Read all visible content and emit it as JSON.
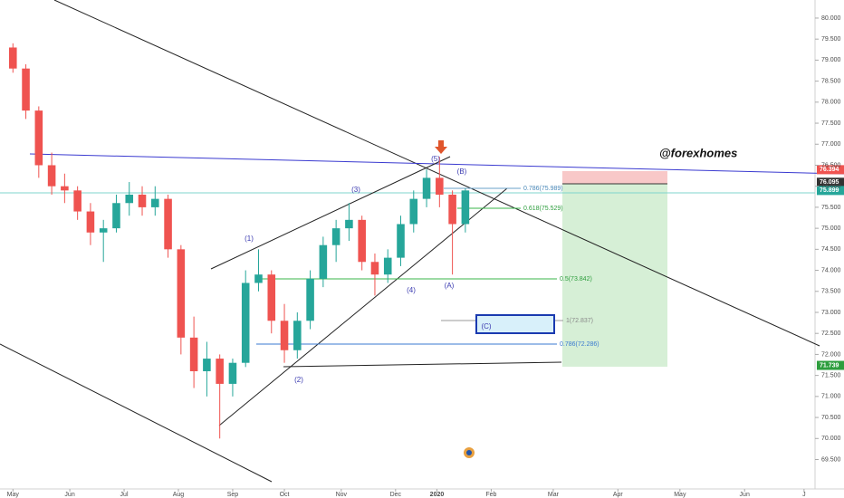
{
  "chart_data": {
    "type": "candlestick",
    "x": [
      0,
      5,
      10,
      15,
      20,
      25,
      30,
      35,
      40,
      45,
      50,
      55,
      60,
      65,
      70,
      75,
      80,
      85,
      90,
      95,
      100,
      105,
      110,
      115,
      120,
      125,
      130,
      135,
      140,
      145,
      150,
      155,
      160,
      165,
      170,
      175
    ],
    "open": [
      79.3,
      78.8,
      77.8,
      76.5,
      76.0,
      75.9,
      75.4,
      74.9,
      75.0,
      75.6,
      75.8,
      75.5,
      75.7,
      74.5,
      72.4,
      71.6,
      71.9,
      71.3,
      71.8,
      73.7,
      73.9,
      72.8,
      72.1,
      72.8,
      73.8,
      74.6,
      75.0,
      75.2,
      74.2,
      73.9,
      74.3,
      75.1,
      75.7,
      76.2,
      75.8,
      75.1
    ],
    "high": [
      79.4,
      78.9,
      77.9,
      76.8,
      76.3,
      76.0,
      75.6,
      75.2,
      75.8,
      76.1,
      76.0,
      76.0,
      75.8,
      74.6,
      72.9,
      72.3,
      72.0,
      71.9,
      74.0,
      74.5,
      74.0,
      73.2,
      73.0,
      74.0,
      74.8,
      75.2,
      75.6,
      75.3,
      74.4,
      74.5,
      75.3,
      75.9,
      76.4,
      76.7,
      75.9,
      75.95
    ],
    "low": [
      78.7,
      77.6,
      76.2,
      75.8,
      75.6,
      75.2,
      74.6,
      74.2,
      74.9,
      75.3,
      75.3,
      75.3,
      74.3,
      72.0,
      71.2,
      71.0,
      70.0,
      71.0,
      71.7,
      73.5,
      72.5,
      71.8,
      71.9,
      72.6,
      73.6,
      74.2,
      74.7,
      74.0,
      73.4,
      73.7,
      74.1,
      74.9,
      75.5,
      75.5,
      73.9,
      74.9
    ],
    "close": [
      78.8,
      77.8,
      76.5,
      76.0,
      75.9,
      75.4,
      74.9,
      75.0,
      75.6,
      75.8,
      75.5,
      75.7,
      74.5,
      72.4,
      71.6,
      71.9,
      71.3,
      71.8,
      73.7,
      73.9,
      72.8,
      72.1,
      72.8,
      73.8,
      74.6,
      75.0,
      75.2,
      74.2,
      73.9,
      74.3,
      75.1,
      75.7,
      76.2,
      75.8,
      75.1,
      75.9
    ],
    "up_color": "#26a69a",
    "down_color": "#ef5350",
    "xlim": [
      -5,
      312
    ],
    "xticks": [
      {
        "value": 0,
        "label": "May"
      },
      {
        "value": 22,
        "label": "Jun"
      },
      {
        "value": 43,
        "label": "Jul"
      },
      {
        "value": 64,
        "label": "Aug"
      },
      {
        "value": 85,
        "label": "Sep"
      },
      {
        "value": 105,
        "label": "Oct"
      },
      {
        "value": 127,
        "label": "Nov"
      },
      {
        "value": 148,
        "label": "Dec"
      },
      {
        "value": 164,
        "label": "2020"
      },
      {
        "value": 185,
        "label": "Feb"
      },
      {
        "value": 209,
        "label": "Mar"
      },
      {
        "value": 234,
        "label": "Apr"
      },
      {
        "value": 258,
        "label": "May"
      },
      {
        "value": 283,
        "label": "Jun"
      },
      {
        "value": 306,
        "label": "J"
      }
    ],
    "ylim": [
      68.8,
      80.43
    ],
    "yticks": [
      {
        "value": 69.5,
        "label": "69.500"
      },
      {
        "value": 70,
        "label": "70.000"
      },
      {
        "value": 70.5,
        "label": "70.500"
      },
      {
        "value": 71,
        "label": "71.000"
      },
      {
        "value": 71.5,
        "label": "71.500"
      },
      {
        "value": 72,
        "label": "72.000"
      },
      {
        "value": 72.5,
        "label": "72.500"
      },
      {
        "value": 73,
        "label": "73.000"
      },
      {
        "value": 73.5,
        "label": "73.500"
      },
      {
        "value": 74,
        "label": "74.000"
      },
      {
        "value": 74.5,
        "label": "74.500"
      },
      {
        "value": 75,
        "label": "75.000"
      },
      {
        "value": 75.5,
        "label": "75.500"
      },
      {
        "value": 76,
        "label": "76.000"
      },
      {
        "value": 76.5,
        "label": "76.500"
      },
      {
        "value": 77,
        "label": "77.000"
      },
      {
        "value": 77.5,
        "label": "77.500"
      },
      {
        "value": 78,
        "label": "78.000"
      },
      {
        "value": 78.5,
        "label": "78.500"
      },
      {
        "value": 79,
        "label": "79.000"
      },
      {
        "value": 79.5,
        "label": "79.500"
      },
      {
        "value": 80,
        "label": "80.000"
      }
    ],
    "price_tags": [
      {
        "value": 76.394,
        "color": "#ef5350"
      },
      {
        "value": 76.095,
        "color": "#333333"
      },
      {
        "value": 75.899,
        "color": "#26a69a"
      },
      {
        "value": 71.739,
        "color": "#2e9e3e"
      }
    ],
    "annotations": [
      "(1)",
      "(2)",
      "(3)",
      "(4)",
      "(5)",
      "(A)",
      "(B)",
      "(C)",
      "0.786(75.989)",
      "0.618(75.529)",
      "0.5(73.842)",
      "1(72.837)",
      "0.786(72.286)"
    ],
    "watermark": "@forexhomes"
  }
}
